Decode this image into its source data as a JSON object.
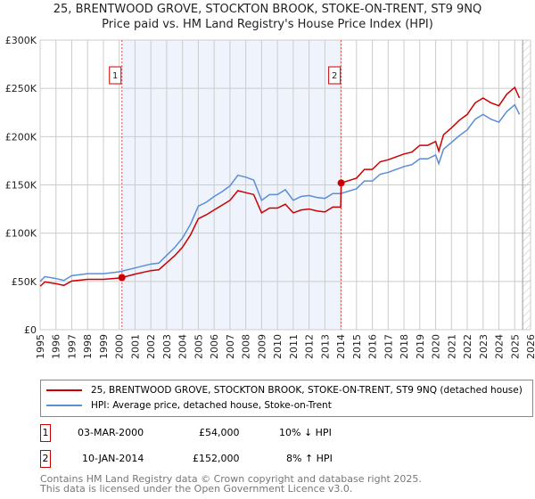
{
  "chart_data": {
    "type": "line",
    "title": "25, BRENTWOOD GROVE, STOCKTON BROOK, STOKE-ON-TRENT, ST9 9NQ",
    "subtitle": "Price paid vs. HM Land Registry's House Price Index (HPI)",
    "xlim": [
      1995,
      2026
    ],
    "ylim": [
      0,
      300000
    ],
    "yticks": [
      {
        "v": 0,
        "label": "£0"
      },
      {
        "v": 50000,
        "label": "£50K"
      },
      {
        "v": 100000,
        "label": "£100K"
      },
      {
        "v": 150000,
        "label": "£150K"
      },
      {
        "v": 200000,
        "label": "£200K"
      },
      {
        "v": 250000,
        "label": "£250K"
      },
      {
        "v": 300000,
        "label": "£300K"
      }
    ],
    "xticks": [
      "1995",
      "1996",
      "1997",
      "1998",
      "1999",
      "2000",
      "2001",
      "2002",
      "2003",
      "2004",
      "2005",
      "2006",
      "2007",
      "2008",
      "2009",
      "2010",
      "2011",
      "2012",
      "2013",
      "2014",
      "2015",
      "2016",
      "2017",
      "2018",
      "2019",
      "2020",
      "2021",
      "2022",
      "2023",
      "2024",
      "2025",
      "2026"
    ],
    "grid": true,
    "series": [
      {
        "name": "25, BRENTWOOD GROVE, STOCKTON BROOK, STOKE-ON-TRENT, ST9 9NQ (detached house)",
        "color": "#cc0000",
        "x": [
          1995,
          1995.3,
          1996,
          1996.5,
          1997,
          1998,
          1999,
          2000,
          2000.17,
          2001,
          2002,
          2002.5,
          2003,
          2003.5,
          2004,
          2004.5,
          2005,
          2005.5,
          2006,
          2006.5,
          2007,
          2007.5,
          2008,
          2008.5,
          2009,
          2009.5,
          2010,
          2010.5,
          2011,
          2011.5,
          2012,
          2012.5,
          2013,
          2013.5,
          2014,
          2014.03,
          2015,
          2015.5,
          2016,
          2016.5,
          2017,
          2017.5,
          2018,
          2018.5,
          2019,
          2019.5,
          2020,
          2020.2,
          2020.5,
          2021,
          2021.5,
          2022,
          2022.5,
          2023,
          2023.5,
          2024,
          2024.5,
          2025,
          2025.3
        ],
        "y": [
          45000,
          49500,
          47700,
          45900,
          50400,
          52200,
          52200,
          53500,
          54000,
          57600,
          61200,
          62100,
          69300,
          76500,
          85500,
          98000,
          115000,
          119000,
          124000,
          129000,
          134000,
          144000,
          142000,
          140000,
          121000,
          126000,
          126000,
          130000,
          121000,
          124000,
          125000,
          123000,
          122000,
          127000,
          127000,
          152000,
          157000,
          166000,
          166000,
          174000,
          176000,
          179000,
          182000,
          184000,
          191000,
          191000,
          195000,
          185000,
          202000,
          209000,
          217000,
          223000,
          235000,
          240000,
          235000,
          232000,
          244000,
          251000,
          240000
        ]
      },
      {
        "name": "HPI: Average price, detached house, Stoke-on-Trent",
        "color": "#5b8ed6",
        "x": [
          1995,
          1995.3,
          1996,
          1996.5,
          1997,
          1998,
          1999,
          2000,
          2001,
          2002,
          2002.5,
          2003,
          2003.5,
          2004,
          2004.5,
          2005,
          2005.5,
          2006,
          2006.5,
          2007,
          2007.5,
          2008,
          2008.5,
          2009,
          2009.5,
          2010,
          2010.5,
          2011,
          2011.5,
          2012,
          2012.5,
          2013,
          2013.5,
          2014,
          2015,
          2015.5,
          2016,
          2016.5,
          2017,
          2017.5,
          2018,
          2018.5,
          2019,
          2019.5,
          2020,
          2020.2,
          2020.5,
          2021,
          2021.5,
          2022,
          2022.5,
          2023,
          2023.5,
          2024,
          2024.5,
          2025,
          2025.3
        ],
        "y": [
          50000,
          55000,
          53000,
          51000,
          56000,
          58000,
          58000,
          60000,
          64000,
          68000,
          69000,
          77000,
          85000,
          95000,
          109000,
          128000,
          132000,
          138000,
          143000,
          149000,
          160000,
          158000,
          155000,
          134000,
          140000,
          140000,
          145000,
          134000,
          138000,
          139000,
          137000,
          136000,
          141000,
          141000,
          146000,
          154000,
          154000,
          161000,
          163000,
          166000,
          169000,
          171000,
          177000,
          177000,
          181000,
          172000,
          187000,
          194000,
          201000,
          207000,
          218000,
          223000,
          218000,
          215000,
          226000,
          233000,
          223000
        ]
      }
    ],
    "transactions": [
      {
        "id": "1",
        "x": 2000.17,
        "y": 54000
      },
      {
        "id": "2",
        "x": 2014.03,
        "y": 152000
      }
    ],
    "forecast_start": 2025.5
  },
  "legend": {
    "property": "25, BRENTWOOD GROVE, STOCKTON BROOK, STOKE-ON-TRENT, ST9 9NQ (detached house)",
    "hpi": "HPI: Average price, detached house, Stoke-on-Trent"
  },
  "table": [
    {
      "id": "1",
      "date": "03-MAR-2000",
      "price": "£54,000",
      "delta": "10% ↓ HPI"
    },
    {
      "id": "2",
      "date": "10-JAN-2014",
      "price": "£152,000",
      "delta": "8% ↑ HPI"
    }
  ],
  "footer": {
    "line1": "Contains HM Land Registry data © Crown copyright and database right 2025.",
    "line2": "This data is licensed under the Open Government Licence v3.0."
  }
}
